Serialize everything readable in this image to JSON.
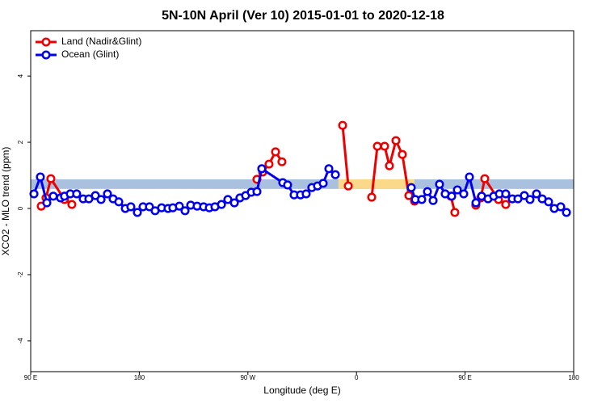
{
  "chart_data": {
    "type": "line",
    "title": "5N-10N April (Ver 10)   2015-01-01 to 2020-12-18",
    "xlabel": "Longitude (deg E)",
    "ylabel": "XCO2 - MLO trend (ppm)",
    "xlim": [
      90,
      540
    ],
    "ylim": [
      -4.93,
      5.37
    ],
    "xticks": [
      {
        "value": 90,
        "label": "90 E"
      },
      {
        "value": 180,
        "label": "180"
      },
      {
        "value": 270,
        "label": "90 W"
      },
      {
        "value": 360,
        "label": "0"
      },
      {
        "value": 450,
        "label": "90 E"
      },
      {
        "value": 540,
        "label": "180"
      }
    ],
    "yticks": [
      -4,
      -2,
      0,
      2,
      4
    ],
    "legend": "topleft",
    "bands": [
      {
        "xlim": [
          90,
          540
        ],
        "ylim": [
          0.59,
          0.88
        ],
        "color": "#a9c0de"
      },
      {
        "xlim": [
          345,
          408
        ],
        "ylim": [
          0.59,
          0.88
        ],
        "color": "#fbd98a"
      }
    ],
    "series": [
      {
        "name": "Land (Nadir&Glint)",
        "color": "#ee0000",
        "x": [
          98.7,
          102.7,
          106.7,
          118.0,
          124.1,
          200,
          277.5,
          282.2,
          287.5,
          292.9,
          298.2,
          320,
          348.5,
          353.2,
          360,
          372.6,
          377.3,
          383.3,
          387.3,
          392.7,
          398.0,
          403.4,
          408.1,
          420,
          438.2,
          441.5,
          450,
          458.9,
          463.0,
          466.3,
          477.7,
          483.7
        ],
        "values": [
          0.07,
          0.32,
          0.9,
          0.27,
          0.12,
          null,
          0.88,
          1.1,
          1.34,
          1.71,
          1.41,
          null,
          2.51,
          0.68,
          null,
          0.34,
          1.88,
          1.88,
          1.29,
          2.05,
          1.63,
          0.39,
          0.22,
          null,
          0.37,
          -0.12,
          null,
          0.1,
          0.32,
          0.9,
          0.27,
          0.12
        ]
      },
      {
        "name": "Ocean (Glint)",
        "color": "#0000ee",
        "x": [
          92.7,
          98.0,
          103.4,
          108.7,
          114.7,
          118.0,
          122.8,
          128.1,
          133.5,
          138.2,
          143.6,
          148.3,
          153.6,
          158.3,
          163.0,
          168.4,
          173.0,
          178.4,
          183.1,
          188.4,
          193.1,
          198.5,
          203.8,
          207.8,
          213.2,
          217.9,
          222.6,
          227.9,
          233.3,
          238.0,
          242.7,
          248.1,
          253.4,
          258.8,
          263.4,
          268.1,
          272.8,
          277.5,
          281.5,
          298.9,
          302.9,
          308.3,
          313.6,
          318.3,
          323.0,
          327.7,
          332.4,
          337.1,
          342.5,
          380,
          405.4,
          408.7,
          414.1,
          418.8,
          423.5,
          428.8,
          433.5,
          438.9,
          443.6,
          448.9,
          453.6,
          459.0,
          463.7,
          469.0,
          473.7,
          478.4,
          483.7,
          489.1,
          493.8,
          499.1,
          503.8,
          509.2,
          513.9,
          519.2,
          523.9,
          529.3,
          534.0
        ],
        "values": [
          0.44,
          0.95,
          0.17,
          0.37,
          0.32,
          0.37,
          0.44,
          0.44,
          0.29,
          0.29,
          0.39,
          0.27,
          0.44,
          0.29,
          0.2,
          0,
          0.05,
          -0.12,
          0.05,
          0.05,
          -0.07,
          0.02,
          0,
          0.02,
          0.07,
          -0.07,
          0.1,
          0.07,
          0.05,
          0.02,
          0.05,
          0.12,
          0.27,
          0.17,
          0.32,
          0.39,
          0.49,
          0.51,
          1.2,
          0.78,
          0.71,
          0.41,
          0.41,
          0.44,
          0.63,
          0.68,
          0.76,
          1.2,
          1.02,
          null,
          0.63,
          0.27,
          0.27,
          0.51,
          0.24,
          0.73,
          0.44,
          0.37,
          0.56,
          0.44,
          0.95,
          0.17,
          0.37,
          0.29,
          0.37,
          0.44,
          0.44,
          0.29,
          0.29,
          0.39,
          0.27,
          0.44,
          0.29,
          0.2,
          0,
          0.05,
          -0.12
        ]
      }
    ]
  }
}
